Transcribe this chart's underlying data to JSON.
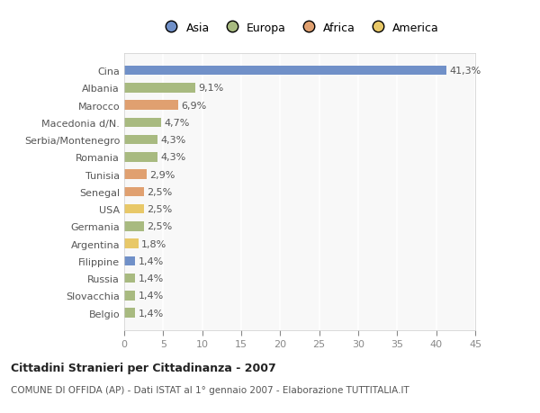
{
  "categories": [
    "Cina",
    "Albania",
    "Marocco",
    "Macedonia d/N.",
    "Serbia/Montenegro",
    "Romania",
    "Tunisia",
    "Senegal",
    "USA",
    "Germania",
    "Argentina",
    "Filippine",
    "Russia",
    "Slovacchia",
    "Belgio"
  ],
  "values": [
    41.3,
    9.1,
    6.9,
    4.7,
    4.3,
    4.3,
    2.9,
    2.5,
    2.5,
    2.5,
    1.8,
    1.4,
    1.4,
    1.4,
    1.4
  ],
  "labels": [
    "41,3%",
    "9,1%",
    "6,9%",
    "4,7%",
    "4,3%",
    "4,3%",
    "2,9%",
    "2,5%",
    "2,5%",
    "2,5%",
    "1,8%",
    "1,4%",
    "1,4%",
    "1,4%",
    "1,4%"
  ],
  "colors": [
    "#7090c8",
    "#a8ba80",
    "#e0a070",
    "#a8ba80",
    "#a8ba80",
    "#a8ba80",
    "#e0a070",
    "#e0a070",
    "#e8c868",
    "#a8ba80",
    "#e8c868",
    "#7090c8",
    "#a8ba80",
    "#a8ba80",
    "#a8ba80"
  ],
  "legend_labels": [
    "Asia",
    "Europa",
    "Africa",
    "America"
  ],
  "legend_colors": [
    "#7090c8",
    "#a8ba80",
    "#e0a070",
    "#e8c868"
  ],
  "title": "Cittadini Stranieri per Cittadinanza - 2007",
  "subtitle": "COMUNE DI OFFIDA (AP) - Dati ISTAT al 1° gennaio 2007 - Elaborazione TUTTITALIA.IT",
  "xlim": [
    0,
    45
  ],
  "xticks": [
    0,
    5,
    10,
    15,
    20,
    25,
    30,
    35,
    40,
    45
  ],
  "background_color": "#ffffff",
  "plot_bg_color": "#f8f8f8",
  "grid_color": "#ffffff",
  "bar_height": 0.55,
  "label_fontsize": 8,
  "tick_fontsize": 8,
  "ytick_fontsize": 8
}
